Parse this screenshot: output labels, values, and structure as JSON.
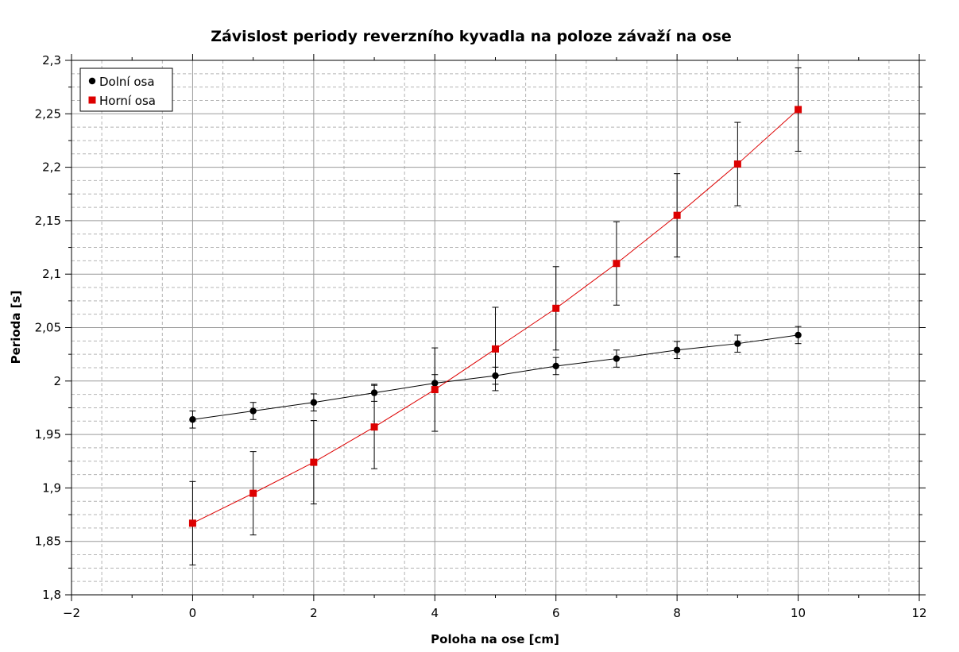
{
  "chart_data": {
    "type": "scatter",
    "title": "Závislost periody reverzního kyvadla na poloze závaží na ose",
    "xlabel": "Poloha na ose [cm]",
    "ylabel": "Perioda [s]",
    "xlim": [
      -2,
      12
    ],
    "ylim": [
      1.8,
      2.3
    ],
    "x_ticks": [
      -2,
      0,
      2,
      4,
      6,
      8,
      10,
      12
    ],
    "x_tick_labels": [
      "−2",
      "0",
      "2",
      "4",
      "6",
      "8",
      "10",
      "12"
    ],
    "y_ticks": [
      1.8,
      1.85,
      1.9,
      1.95,
      2.0,
      2.05,
      2.1,
      2.15,
      2.2,
      2.25,
      2.3
    ],
    "y_tick_labels": [
      "1,8",
      "1,85",
      "1,9",
      "1,95",
      "2",
      "2,05",
      "2,1",
      "2,15",
      "2,2",
      "2,25",
      "2,3"
    ],
    "grid": true,
    "legend_position": "top-left",
    "series": [
      {
        "name": "Dolní osa",
        "color": "#000000",
        "marker": "circle",
        "x": [
          0,
          1,
          2,
          3,
          4,
          5,
          6,
          7,
          8,
          9,
          10
        ],
        "y": [
          1.964,
          1.972,
          1.98,
          1.989,
          1.998,
          2.005,
          2.014,
          2.021,
          2.029,
          2.035,
          2.043
        ],
        "err": [
          0.008,
          0.008,
          0.008,
          0.008,
          0.008,
          0.008,
          0.008,
          0.008,
          0.008,
          0.008,
          0.008
        ]
      },
      {
        "name": "Horní osa",
        "color": "#dd0000",
        "marker": "square",
        "x": [
          0,
          1,
          2,
          3,
          4,
          5,
          6,
          7,
          8,
          9,
          10
        ],
        "y": [
          1.867,
          1.895,
          1.924,
          1.957,
          1.992,
          2.03,
          2.068,
          2.11,
          2.155,
          2.203,
          2.254
        ],
        "err": [
          0.039,
          0.039,
          0.039,
          0.039,
          0.039,
          0.039,
          0.039,
          0.039,
          0.039,
          0.039,
          0.039
        ]
      }
    ]
  }
}
